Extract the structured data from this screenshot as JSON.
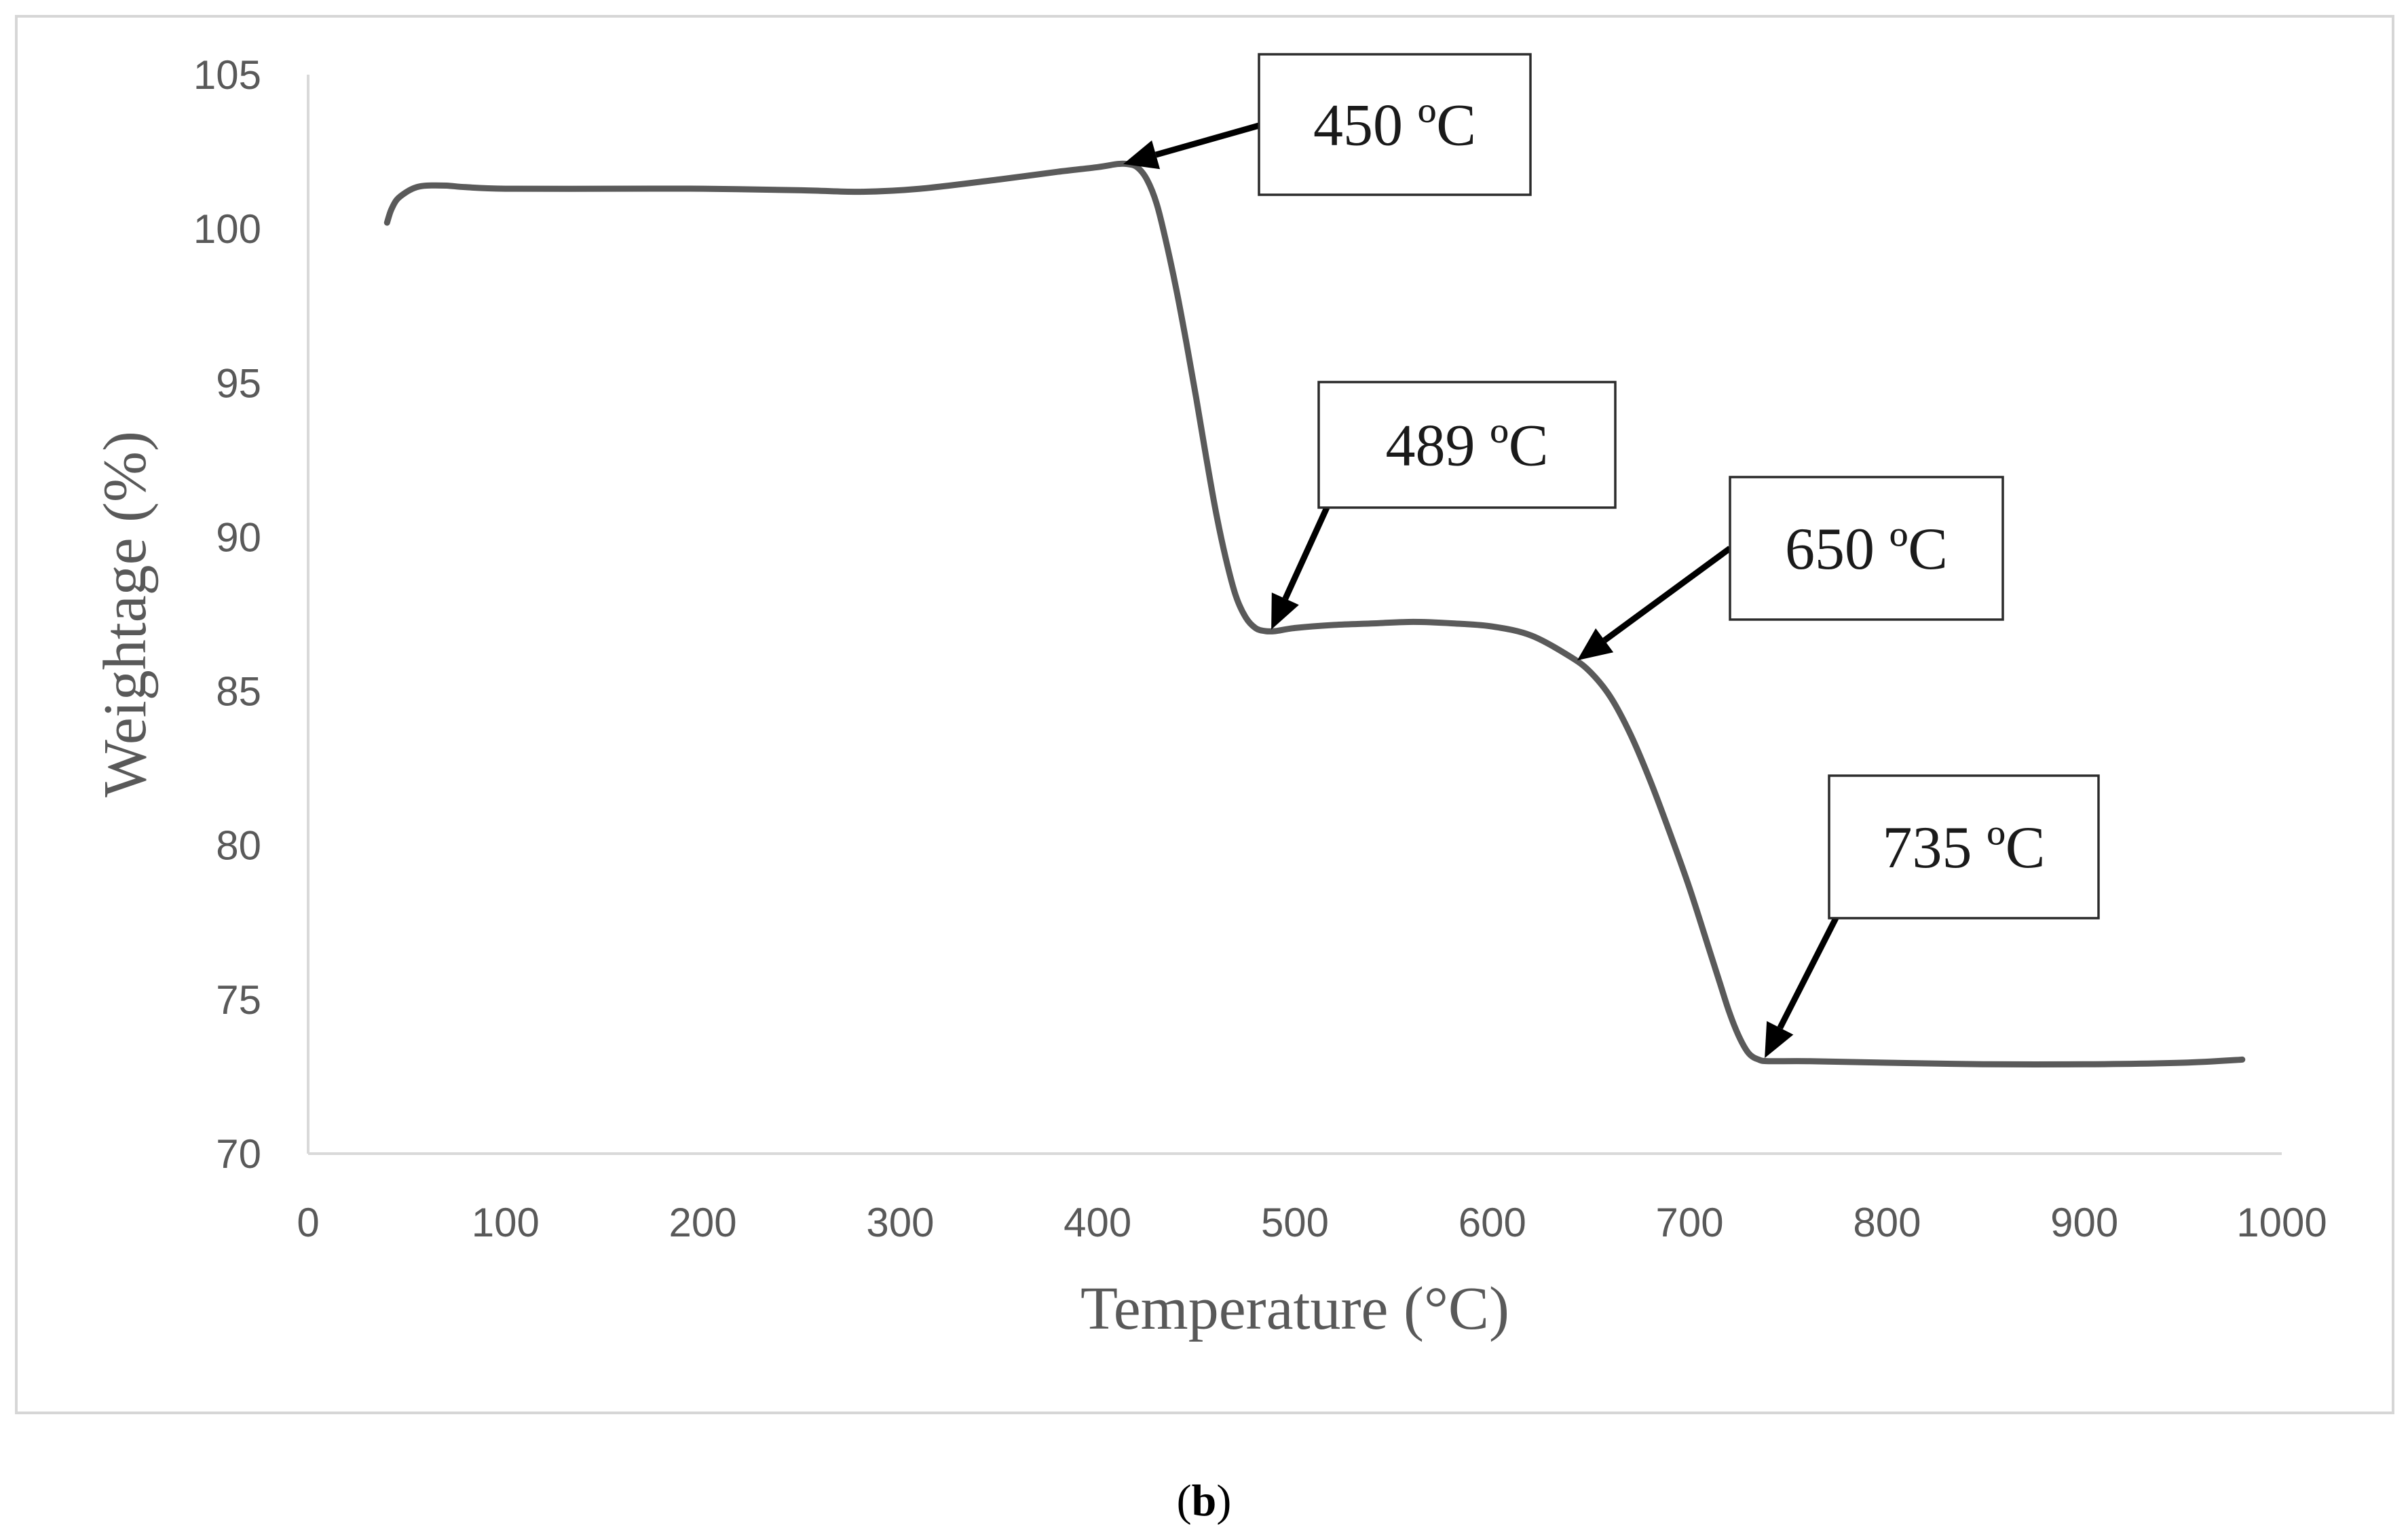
{
  "chart_data": {
    "type": "line",
    "title": "",
    "xlabel": "Temperature (°C)",
    "ylabel": "Weightage (%)",
    "xlim": [
      0,
      1000
    ],
    "ylim": [
      70,
      105
    ],
    "x_ticks": [
      0,
      100,
      200,
      300,
      400,
      500,
      600,
      700,
      800,
      900,
      1000
    ],
    "y_ticks": [
      70,
      75,
      80,
      85,
      90,
      95,
      100,
      105
    ],
    "grid": false,
    "legend": "none",
    "series": [
      {
        "name": "Weightage",
        "x": [
          40,
          42,
          45,
          50,
          55,
          60,
          70,
          80,
          100,
          150,
          200,
          250,
          280,
          310,
          350,
          380,
          400,
          410,
          415,
          420,
          425,
          430,
          435,
          440,
          445,
          450,
          455,
          460,
          465,
          470,
          475,
          480,
          485,
          490,
          500,
          520,
          540,
          560,
          580,
          600,
          620,
          640,
          650,
          660,
          670,
          680,
          690,
          700,
          710,
          715,
          720,
          725,
          730,
          735,
          740,
          760,
          800,
          850,
          900,
          950,
          980
        ],
        "values": [
          100.2,
          100.6,
          100.95,
          101.2,
          101.35,
          101.4,
          101.4,
          101.35,
          101.3,
          101.3,
          101.3,
          101.25,
          101.2,
          101.3,
          101.6,
          101.85,
          102.0,
          102.1,
          102.1,
          102.0,
          101.6,
          100.8,
          99.5,
          98.0,
          96.3,
          94.5,
          92.6,
          90.8,
          89.3,
          88.1,
          87.4,
          87.05,
          86.95,
          86.95,
          87.05,
          87.15,
          87.2,
          87.25,
          87.2,
          87.1,
          86.8,
          86.1,
          85.6,
          84.8,
          83.6,
          82.1,
          80.4,
          78.6,
          76.6,
          75.6,
          74.6,
          73.8,
          73.25,
          73.05,
          73.0,
          73.0,
          72.95,
          72.9,
          72.9,
          72.95,
          73.05
        ]
      }
    ],
    "annotations": [
      {
        "text": "450 ºC",
        "x": 413,
        "y": 102.1
      },
      {
        "text": "489 ºC",
        "x": 488,
        "y": 87.0
      },
      {
        "text": "650 ºC",
        "x": 643,
        "y": 86.0
      },
      {
        "text": "735 ºC",
        "x": 738,
        "y": 73.1
      }
    ]
  },
  "caption": {
    "open": "(",
    "letter": "b",
    "close": ")"
  }
}
